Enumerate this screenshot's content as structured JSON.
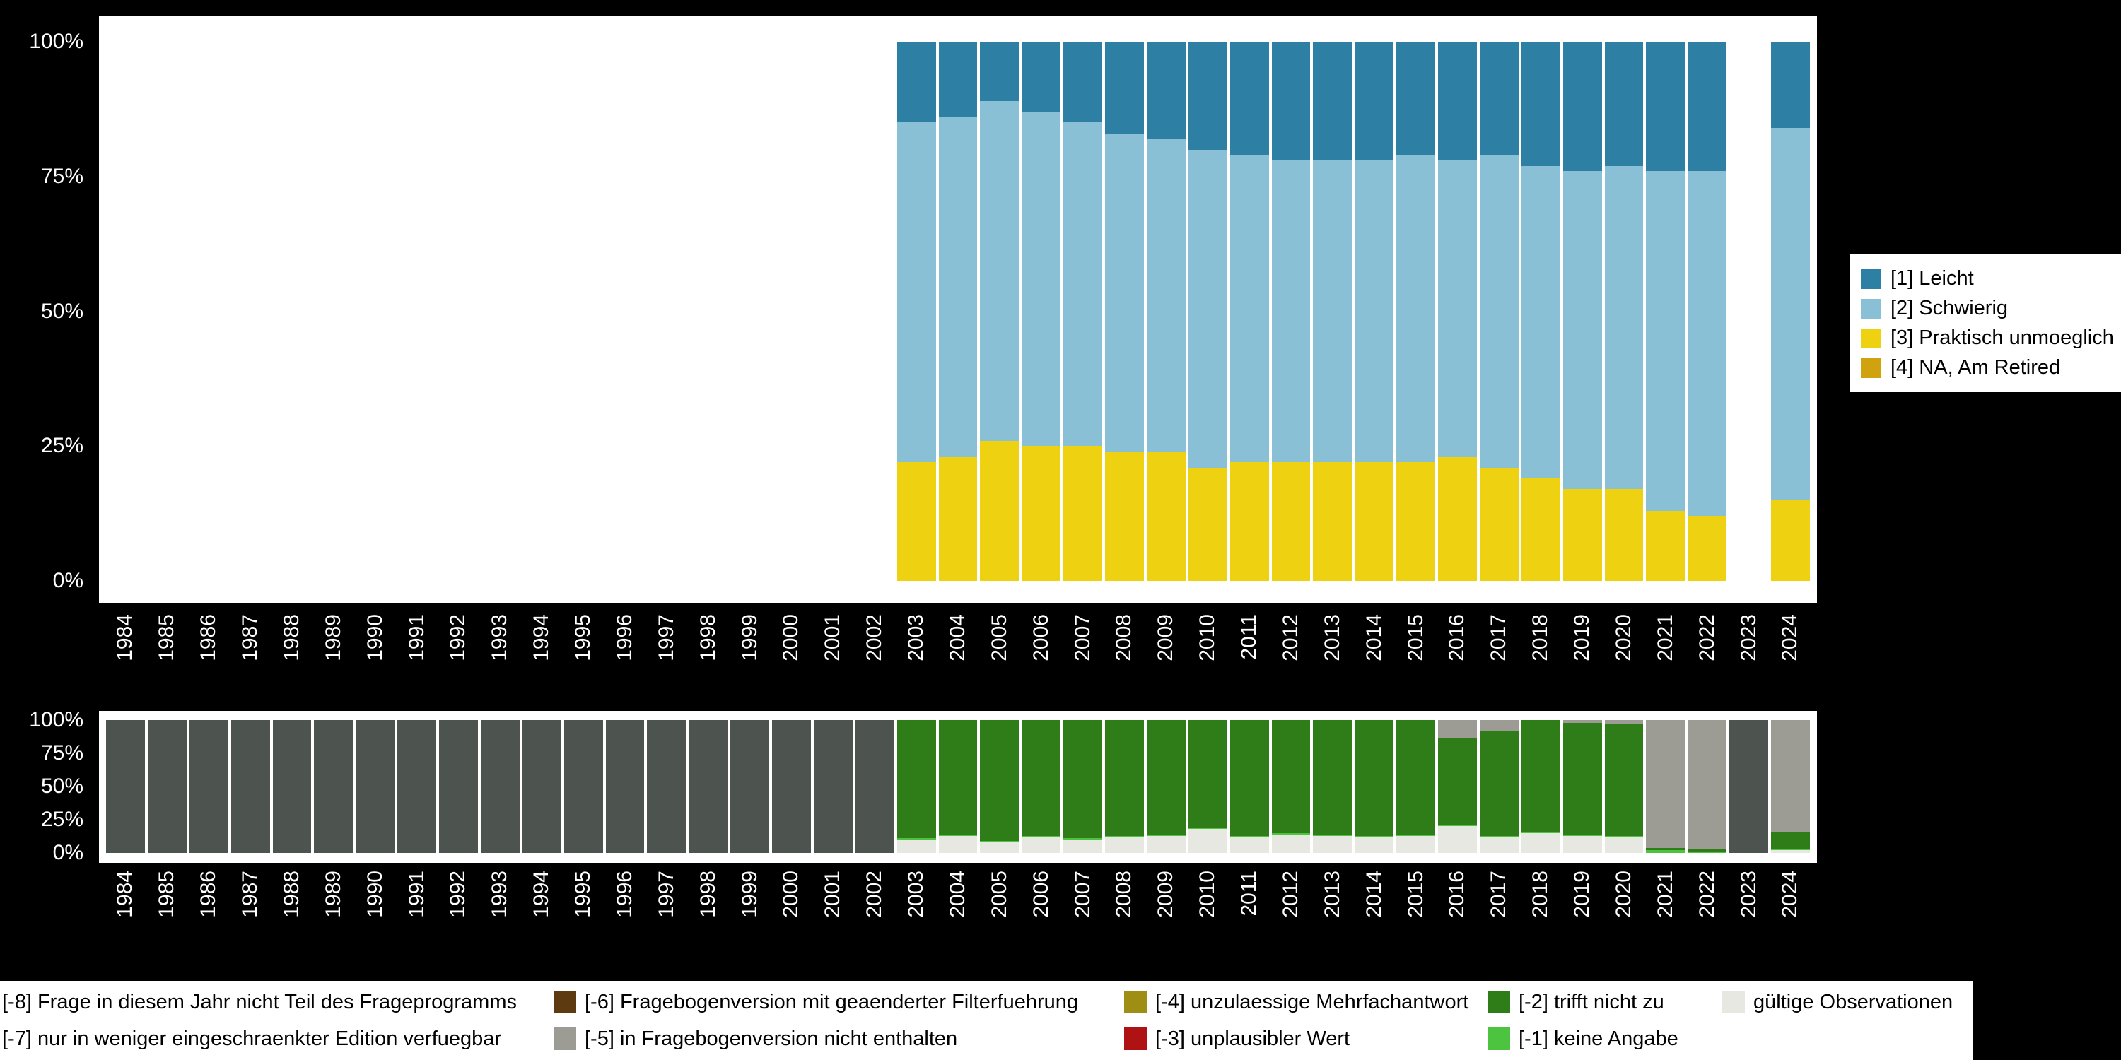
{
  "colors": {
    "background": "#000000",
    "panel": "#ffffff",
    "axis_text": "#ffffff",
    "cat_leicht": "#2d7fa4",
    "cat_schwierig": "#8ac0d6",
    "cat_praktisch_unmoeglich": "#eed211",
    "cat_na_am_retired": "#d1a210",
    "valid_obs": "#e8e8e2",
    "m1_keine_angabe": "#4cc440",
    "m2_trifft_nicht_zu": "#2e7d19",
    "m3_unplausibler_wert": "#ae1212",
    "m4_unzulaessige_mehrfachantwort": "#9e8e14",
    "m5_nicht_enthalten": "#9c9c94",
    "m6_geaenderte_filterfuehrung": "#5e3a10",
    "m7_eingeschraenkte_edition": "#808080",
    "m8_nicht_teil_frageprogramm": "#4d534f"
  },
  "axes": {
    "y_ticks": [
      "100%",
      "75%",
      "50%",
      "25%",
      "0%"
    ]
  },
  "legend_top": {
    "items": [
      {
        "label": "[1] Leicht",
        "color": "cat_leicht"
      },
      {
        "label": "[2] Schwierig",
        "color": "cat_schwierig"
      },
      {
        "label": "[3] Praktisch unmoeglich",
        "color": "cat_praktisch_unmoeglich"
      },
      {
        "label": "[4] NA, Am Retired",
        "color": "cat_na_am_retired"
      }
    ]
  },
  "legend_bottom": {
    "cells": [
      {
        "label": "[-8] Frage in diesem Jahr nicht Teil des Frageprogramms",
        "color": "m8_nicht_teil_frageprogramm",
        "swatch": false
      },
      {
        "label": "[-6] Fragebogenversion mit geaenderter Filterfuehrung",
        "color": "m6_geaenderte_filterfuehrung",
        "swatch": true
      },
      {
        "label": "[-4] unzulaessige Mehrfachantwort",
        "color": "m4_unzulaessige_mehrfachantwort",
        "swatch": true
      },
      {
        "label": "[-2] trifft nicht zu",
        "color": "m2_trifft_nicht_zu",
        "swatch": true
      },
      {
        "label": "gültige Observationen",
        "color": "valid_obs",
        "swatch": true
      },
      {
        "label": "[-7] nur in weniger eingeschraenkter Edition verfuegbar",
        "color": "m7_eingeschraenkte_edition",
        "swatch": false
      },
      {
        "label": "[-5] in Fragebogenversion nicht enthalten",
        "color": "m5_nicht_enthalten",
        "swatch": true
      },
      {
        "label": "[-3] unplausibler Wert",
        "color": "m3_unplausibler_wert",
        "swatch": true
      },
      {
        "label": "[-1] keine Angabe",
        "color": "m1_keine_angabe",
        "swatch": true
      },
      null
    ]
  },
  "chart_data": [
    {
      "type": "bar",
      "stacked": true,
      "title": "",
      "ylabel": "",
      "xlabel": "",
      "ylim": [
        0,
        100
      ],
      "unit": "percent",
      "grid": false,
      "legend_position": "right",
      "x_categories": [
        "1984",
        "1985",
        "1986",
        "1987",
        "1988",
        "1989",
        "1990",
        "1991",
        "1992",
        "1993",
        "1994",
        "1995",
        "1996",
        "1997",
        "1998",
        "1999",
        "2000",
        "2001",
        "2002",
        "2003",
        "2004",
        "2005",
        "2006",
        "2007",
        "2008",
        "2009",
        "2010",
        "2011",
        "2012",
        "2013",
        "2014",
        "2015",
        "2016",
        "2017",
        "2018",
        "2019",
        "2020",
        "2021",
        "2022",
        "2023",
        "2024"
      ],
      "series": [
        {
          "name": "[4] NA, Am Retired",
          "color": "cat_na_am_retired",
          "values": [
            0,
            0,
            0,
            0,
            0,
            0,
            0,
            0,
            0,
            0,
            0,
            0,
            0,
            0,
            0,
            0,
            0,
            0,
            0,
            0,
            0,
            0,
            0,
            0,
            0,
            0,
            0,
            0,
            0,
            0,
            0,
            0,
            0,
            0,
            0,
            0,
            0,
            0,
            0,
            0,
            0
          ]
        },
        {
          "name": "[3] Praktisch unmoeglich",
          "color": "cat_praktisch_unmoeglich",
          "values": [
            0,
            0,
            0,
            0,
            0,
            0,
            0,
            0,
            0,
            0,
            0,
            0,
            0,
            0,
            0,
            0,
            0,
            0,
            0,
            22,
            23,
            26,
            25,
            25,
            24,
            24,
            21,
            22,
            22,
            22,
            22,
            22,
            23,
            21,
            19,
            17,
            17,
            13,
            12,
            0,
            15
          ]
        },
        {
          "name": "[2] Schwierig",
          "color": "cat_schwierig",
          "values": [
            0,
            0,
            0,
            0,
            0,
            0,
            0,
            0,
            0,
            0,
            0,
            0,
            0,
            0,
            0,
            0,
            0,
            0,
            0,
            63,
            63,
            63,
            62,
            60,
            59,
            58,
            59,
            57,
            56,
            56,
            56,
            57,
            55,
            58,
            58,
            59,
            60,
            63,
            64,
            0,
            69
          ]
        },
        {
          "name": "[1] Leicht",
          "color": "cat_leicht",
          "values": [
            0,
            0,
            0,
            0,
            0,
            0,
            0,
            0,
            0,
            0,
            0,
            0,
            0,
            0,
            0,
            0,
            0,
            0,
            0,
            15,
            14,
            11,
            13,
            15,
            17,
            18,
            20,
            21,
            22,
            22,
            22,
            21,
            22,
            21,
            23,
            24,
            23,
            24,
            24,
            0,
            16
          ]
        }
      ]
    },
    {
      "type": "bar",
      "stacked": true,
      "title": "",
      "ylabel": "",
      "xlabel": "",
      "ylim": [
        0,
        100
      ],
      "unit": "percent",
      "grid": false,
      "legend_position": "bottom",
      "x_categories": [
        "1984",
        "1985",
        "1986",
        "1987",
        "1988",
        "1989",
        "1990",
        "1991",
        "1992",
        "1993",
        "1994",
        "1995",
        "1996",
        "1997",
        "1998",
        "1999",
        "2000",
        "2001",
        "2002",
        "2003",
        "2004",
        "2005",
        "2006",
        "2007",
        "2008",
        "2009",
        "2010",
        "2011",
        "2012",
        "2013",
        "2014",
        "2015",
        "2016",
        "2017",
        "2018",
        "2019",
        "2020",
        "2021",
        "2022",
        "2023",
        "2024"
      ],
      "series": [
        {
          "name": "gültige Observationen",
          "color": "valid_obs",
          "values": [
            0,
            0,
            0,
            0,
            0,
            0,
            0,
            0,
            0,
            0,
            0,
            0,
            0,
            0,
            0,
            0,
            0,
            0,
            0,
            10,
            13,
            8,
            12,
            10,
            12,
            13,
            18,
            12,
            14,
            13,
            12,
            13,
            20,
            12,
            15,
            13,
            12,
            0,
            0,
            0,
            2
          ]
        },
        {
          "name": "[-1] keine Angabe",
          "color": "m1_keine_angabe",
          "values": [
            0,
            0,
            0,
            0,
            0,
            0,
            0,
            0,
            0,
            0,
            0,
            0,
            0,
            0,
            0,
            0,
            0,
            0,
            0,
            1,
            1,
            1,
            1,
            1,
            1,
            1,
            1,
            1,
            1,
            1,
            1,
            1,
            1,
            1,
            1,
            1,
            1,
            2,
            1,
            0,
            1
          ]
        },
        {
          "name": "[-2] trifft nicht zu",
          "color": "m2_trifft_nicht_zu",
          "values": [
            0,
            0,
            0,
            0,
            0,
            0,
            0,
            0,
            0,
            0,
            0,
            0,
            0,
            0,
            0,
            0,
            0,
            0,
            0,
            89,
            86,
            91,
            87,
            89,
            87,
            86,
            81,
            87,
            85,
            86,
            87,
            86,
            65,
            79,
            84,
            84,
            84,
            2,
            2,
            0,
            13
          ]
        },
        {
          "name": "[-5] in Fragebogenversion nicht enthalten",
          "color": "m5_nicht_enthalten",
          "values": [
            0,
            0,
            0,
            0,
            0,
            0,
            0,
            0,
            0,
            0,
            0,
            0,
            0,
            0,
            0,
            0,
            0,
            0,
            0,
            0,
            0,
            0,
            0,
            0,
            0,
            0,
            0,
            0,
            0,
            0,
            0,
            0,
            14,
            8,
            0,
            2,
            3,
            96,
            97,
            0,
            84
          ]
        },
        {
          "name": "[-8] Frage in diesem Jahr nicht Teil des Frageprogramms",
          "color": "m8_nicht_teil_frageprogramm",
          "values": [
            100,
            100,
            100,
            100,
            100,
            100,
            100,
            100,
            100,
            100,
            100,
            100,
            100,
            100,
            100,
            100,
            100,
            100,
            100,
            0,
            0,
            0,
            0,
            0,
            0,
            0,
            0,
            0,
            0,
            0,
            0,
            0,
            0,
            0,
            0,
            0,
            0,
            0,
            0,
            100,
            0
          ]
        }
      ]
    }
  ]
}
